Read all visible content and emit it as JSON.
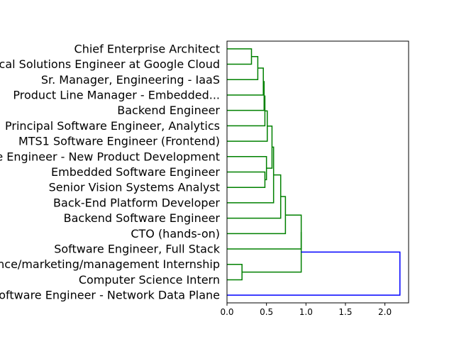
{
  "chart_data": {
    "type": "dendrogram",
    "orientation": "left",
    "leaves": [
      "Chief Enterprise Architect",
      "Technical Solutions Engineer at Google Cloud",
      "Sr. Manager, Engineering - IaaS",
      "Product Line Manager - Embedded...",
      "Backend Engineer",
      "Principal Software Engineer, Analytics",
      "MTS1 Software Engineer (Frontend)",
      "Software Engineer - New Product Development",
      "Embedded Software Engineer",
      "Senior Vision Systems Analyst",
      "Back-End Platform Developer",
      "Backend Software Engineer",
      "CTO (hands-on)",
      "Software Engineer, Full Stack",
      "Finance/marketing/management Internship",
      "Computer Science Intern",
      "Software Engineer - Network Data Plane"
    ],
    "merges": [
      {
        "a": 0,
        "b": 1,
        "height": 0.31,
        "color": "#008000"
      },
      {
        "a": 17,
        "b": 2,
        "height": 0.39,
        "color": "#008000"
      },
      {
        "a": 18,
        "b": 3,
        "height": 0.46,
        "color": "#008000"
      },
      {
        "a": 19,
        "b": 4,
        "height": 0.47,
        "color": "#008000"
      },
      {
        "a": 20,
        "b": 5,
        "height": 0.48,
        "color": "#008000"
      },
      {
        "a": 21,
        "b": 6,
        "height": 0.51,
        "color": "#008000"
      },
      {
        "a": 8,
        "b": 9,
        "height": 0.48,
        "color": "#008000"
      },
      {
        "a": 7,
        "b": 23,
        "height": 0.5,
        "color": "#008000"
      },
      {
        "a": 22,
        "b": 24,
        "height": 0.57,
        "color": "#008000"
      },
      {
        "a": 25,
        "b": 10,
        "height": 0.59,
        "color": "#008000"
      },
      {
        "a": 26,
        "b": 11,
        "height": 0.68,
        "color": "#008000"
      },
      {
        "a": 27,
        "b": 12,
        "height": 0.74,
        "color": "#008000"
      },
      {
        "a": 28,
        "b": 13,
        "height": 0.94,
        "color": "#008000"
      },
      {
        "a": 14,
        "b": 15,
        "height": 0.19,
        "color": "#008000"
      },
      {
        "a": 29,
        "b": 30,
        "height": 0.94,
        "color": "#008000"
      },
      {
        "a": 31,
        "b": 16,
        "height": 2.19,
        "color": "#0000ff"
      }
    ],
    "x_ticks": [
      "0.0",
      "0.5",
      "1.0",
      "1.5",
      "2.0"
    ],
    "x_tick_values": [
      0.0,
      0.5,
      1.0,
      1.5,
      2.0
    ],
    "xlim": [
      0,
      2.3
    ],
    "colors": {
      "cluster": "#008000",
      "above_threshold": "#0000ff"
    }
  }
}
